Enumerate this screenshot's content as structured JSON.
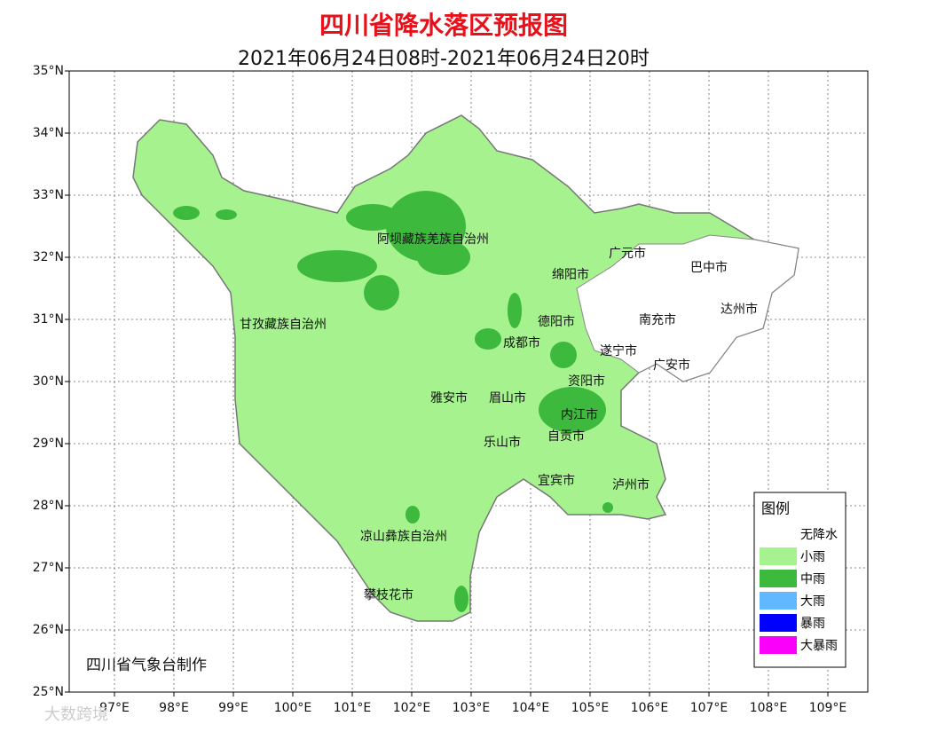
{
  "header": {
    "title": "四川省降水落区预报图",
    "subtitle": "2021年06月24日08时-2021年06月24日20时"
  },
  "map": {
    "x_ticks": [
      "97°E",
      "98°E",
      "99°E",
      "100°E",
      "101°E",
      "102°E",
      "103°E",
      "104°E",
      "105°E",
      "106°E",
      "107°E",
      "108°E",
      "109°E"
    ],
    "y_ticks": [
      "25°N",
      "26°N",
      "27°N",
      "28°N",
      "29°N",
      "30°N",
      "31°N",
      "32°N",
      "33°N",
      "34°N",
      "35°N"
    ],
    "places": [
      "阿坝藏族羌族自治州",
      "甘孜藏族自治州",
      "广元市",
      "巴中市",
      "绵阳市",
      "德阳市",
      "南充市",
      "达州市",
      "成都市",
      "遂宁市",
      "广安市",
      "资阳市",
      "雅安市",
      "眉山市",
      "内江市",
      "自贡市",
      "乐山市",
      "宜宾市",
      "泸州市",
      "凉山彝族自治州",
      "攀枝花市"
    ]
  },
  "legend": {
    "title": "图例",
    "items": [
      {
        "label": "无降水",
        "color": "#ffffff"
      },
      {
        "label": "小雨",
        "color": "#a6f28f"
      },
      {
        "label": "中雨",
        "color": "#3dba3d"
      },
      {
        "label": "大雨",
        "color": "#61b8ff"
      },
      {
        "label": "暴雨",
        "color": "#0000fe"
      },
      {
        "label": "大暴雨",
        "color": "#fa00fa"
      }
    ]
  },
  "credit": "四川省气象台制作",
  "watermark": "大数跨境"
}
